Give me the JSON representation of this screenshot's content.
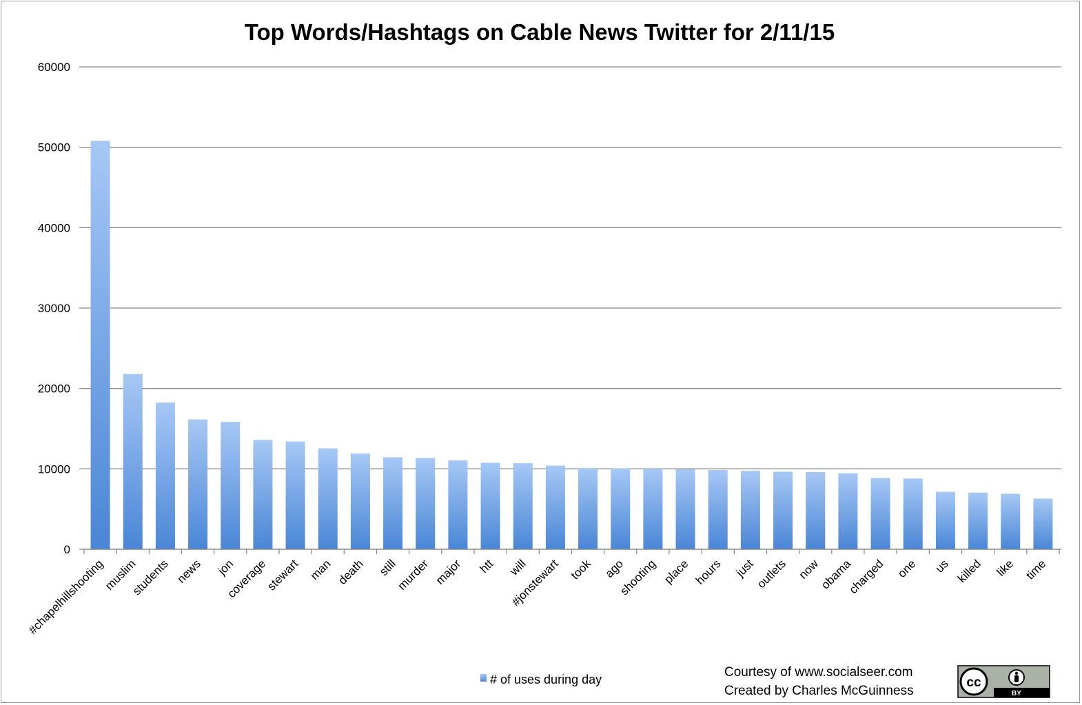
{
  "chart_data": {
    "type": "bar",
    "title": "Top Words/Hashtags on Cable News Twitter for 2/11/15",
    "xlabel": "",
    "ylabel": "",
    "ylim": [
      0,
      60000
    ],
    "yticks": [
      0,
      10000,
      20000,
      30000,
      40000,
      50000,
      60000
    ],
    "grid": true,
    "legend_position": "bottom",
    "categories": [
      "#chapelhillshooting",
      "muslim",
      "students",
      "news",
      "jon",
      "coverage",
      "stewart",
      "man",
      "death",
      "still",
      "murder",
      "major",
      "htt",
      "will",
      "#jonstewart",
      "took",
      "ago",
      "shooting",
      "place",
      "hours",
      "just",
      "outlets",
      "now",
      "obama",
      "charged",
      "one",
      "us",
      "killed",
      "like",
      "time"
    ],
    "series": [
      {
        "name": "# of uses during day",
        "color": "#5b9bd5",
        "values": [
          50800,
          21800,
          18250,
          16150,
          15850,
          13600,
          13400,
          12550,
          11900,
          11450,
          11350,
          11050,
          10750,
          10700,
          10400,
          10100,
          10050,
          10000,
          9950,
          9850,
          9750,
          9650,
          9600,
          9450,
          8850,
          8800,
          7150,
          7050,
          6900,
          6300
        ]
      }
    ]
  },
  "credits": {
    "courtesy": "Courtesy of www.socialseer.com",
    "created_by": "Created by Charles McGuinness"
  },
  "license_badge": {
    "icon": "creative-commons-by-icon",
    "cc_label": "cc",
    "by_label": "BY"
  }
}
